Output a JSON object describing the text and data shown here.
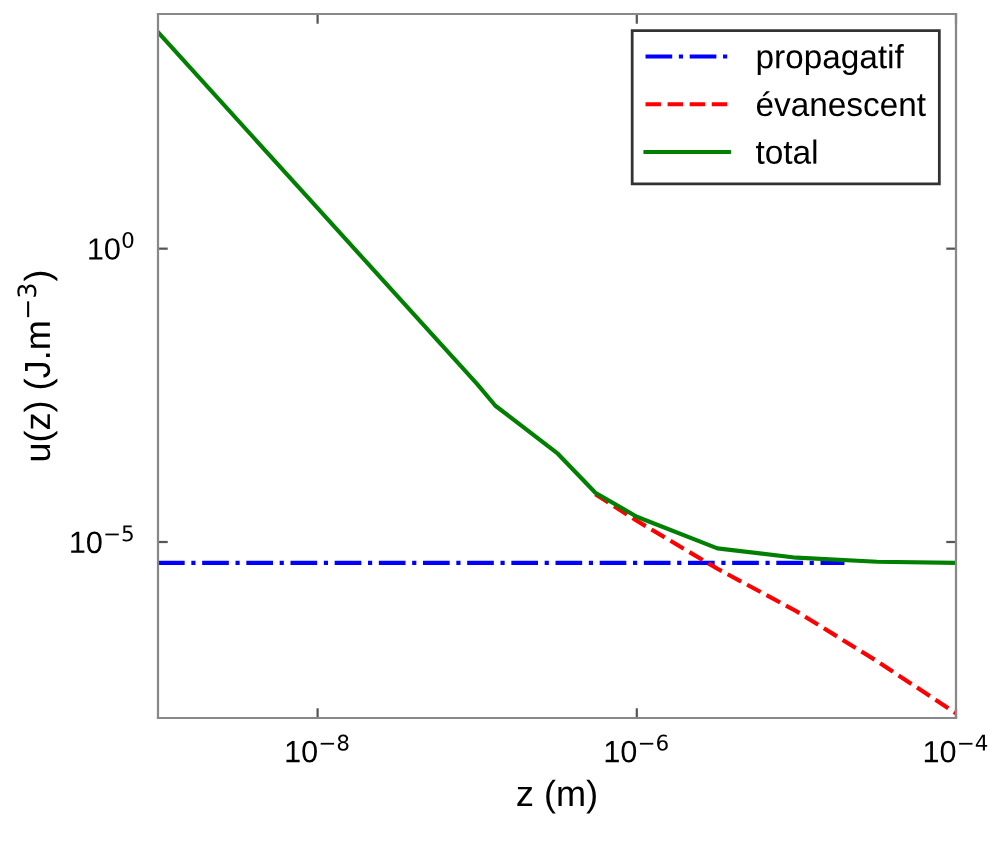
{
  "chart_data": {
    "type": "line",
    "xlabel": "z (m)",
    "ylabel": "u(z) (J.m$^{−3}$)",
    "log": "xy",
    "xlim": [
      1e-09,
      0.0001
    ],
    "ylim": [
      1e-08,
      10000.0
    ],
    "xticks": [
      {
        "value": 1e-08,
        "label": "10$^{−8}$"
      },
      {
        "value": 1e-06,
        "label": "10$^{−6}$"
      },
      {
        "value": 0.0001,
        "label": "10$^{−4}$"
      }
    ],
    "yticks": [
      {
        "value": 1e-05,
        "label": "10$^{−5}$"
      },
      {
        "value": 1,
        "label": "10$^{0}$"
      }
    ],
    "grid": false,
    "legend": "top right",
    "series": [
      {
        "name": "propagatif",
        "color": "#0000ff",
        "line_style": "dashdot",
        "x": [
          1e-09,
          2e-05
        ],
        "values": [
          4.4e-06,
          4.4e-06
        ]
      },
      {
        "name": "évanescent",
        "color": "#ff0000",
        "line_style": "dashed",
        "x": [
          5.5e-07,
          1e-06,
          3.2e-06,
          1e-05,
          3.2e-05,
          0.0001
        ],
        "values": [
          6.5e-05,
          2.3e-05,
          3.5e-06,
          6.6e-07,
          9.3e-08,
          1.2e-08
        ]
      },
      {
        "name": "total",
        "color": "#008000",
        "line_style": "solid",
        "x": [
          1e-09,
          1e-08,
          1e-07,
          1.3e-07,
          3.2e-07,
          5.5e-07,
          1e-06,
          3.2e-06,
          1e-05,
          3.2e-05,
          0.0001
        ],
        "values": [
          4900.0,
          4.9,
          0.0049,
          0.0021,
          0.00032,
          6.9e-05,
          2.7e-05,
          7.8e-06,
          5.4e-06,
          4.6e-06,
          4.4e-06
        ]
      }
    ]
  }
}
